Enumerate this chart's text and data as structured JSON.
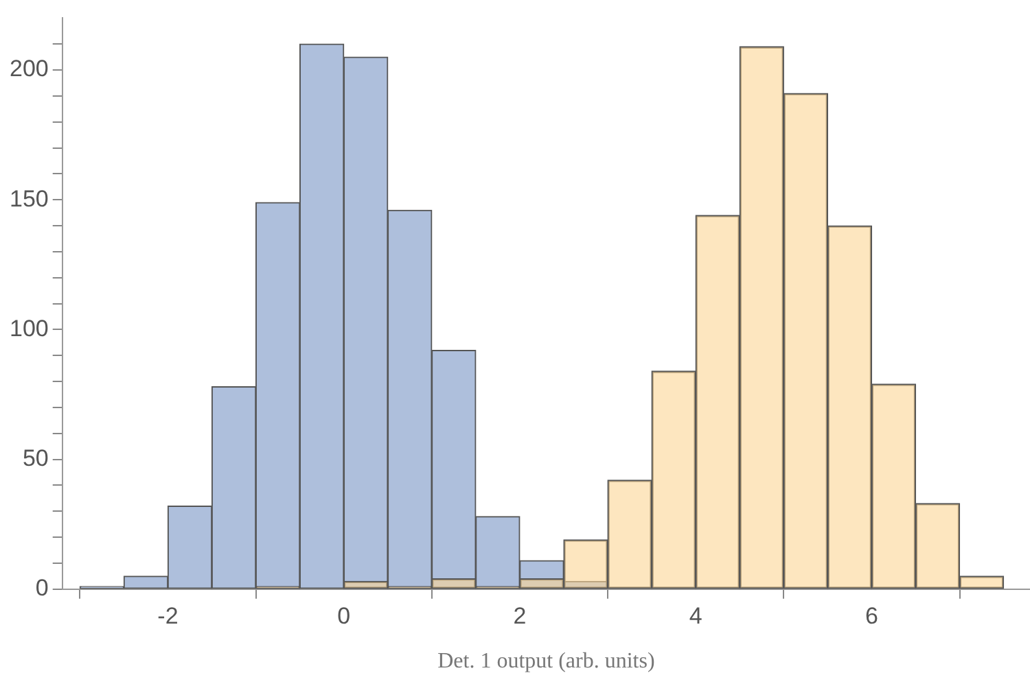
{
  "chart_data": {
    "type": "histogram",
    "xlabel": "Det. 1 output (arb. units)",
    "bins": [
      -3,
      -2.5,
      -2,
      -1.5,
      -1,
      -0.5,
      0,
      0.5,
      1,
      1.5,
      2,
      2.5,
      3,
      3.5,
      4,
      4.5,
      5,
      5.5,
      6,
      6.5,
      7,
      7.5
    ],
    "series": [
      {
        "color": "#aebfdc",
        "values": [
          1,
          5,
          32,
          78,
          149,
          210,
          205,
          146,
          92,
          28,
          11,
          3,
          0,
          0,
          0,
          0,
          0,
          0,
          0,
          0,
          0
        ]
      },
      {
        "color": "#fbd594",
        "values": [
          0,
          0,
          0,
          0,
          1,
          0,
          3,
          1,
          4,
          1,
          4,
          19,
          42,
          84,
          144,
          209,
          191,
          140,
          79,
          33,
          5
        ]
      }
    ],
    "xlim": [
      -3.2,
      7.8
    ],
    "xticks": [
      -2,
      0,
      2,
      4,
      6
    ],
    "ylim": [
      0,
      220
    ],
    "yticks": [
      0,
      {
        "value": 10,
        "label": null
      },
      {
        "value": 20,
        "label": null
      },
      {
        "value": 30,
        "label": null
      },
      {
        "value": 40,
        "label": null
      },
      50,
      {
        "value": 60,
        "label": null
      },
      {
        "value": 70,
        "label": null
      },
      {
        "value": 80,
        "label": null
      },
      {
        "value": 90,
        "label": null
      },
      100,
      {
        "value": 110,
        "label": null
      },
      {
        "value": 120,
        "label": null
      },
      {
        "value": 130,
        "label": null
      },
      {
        "value": 140,
        "label": null
      },
      150,
      {
        "value": 160,
        "label": null
      },
      {
        "value": 170,
        "label": null
      },
      {
        "value": 180,
        "label": null
      },
      {
        "value": 190,
        "label": null
      },
      200,
      {
        "value": 210,
        "label": null
      }
    ],
    "grid": false,
    "legend": false
  }
}
